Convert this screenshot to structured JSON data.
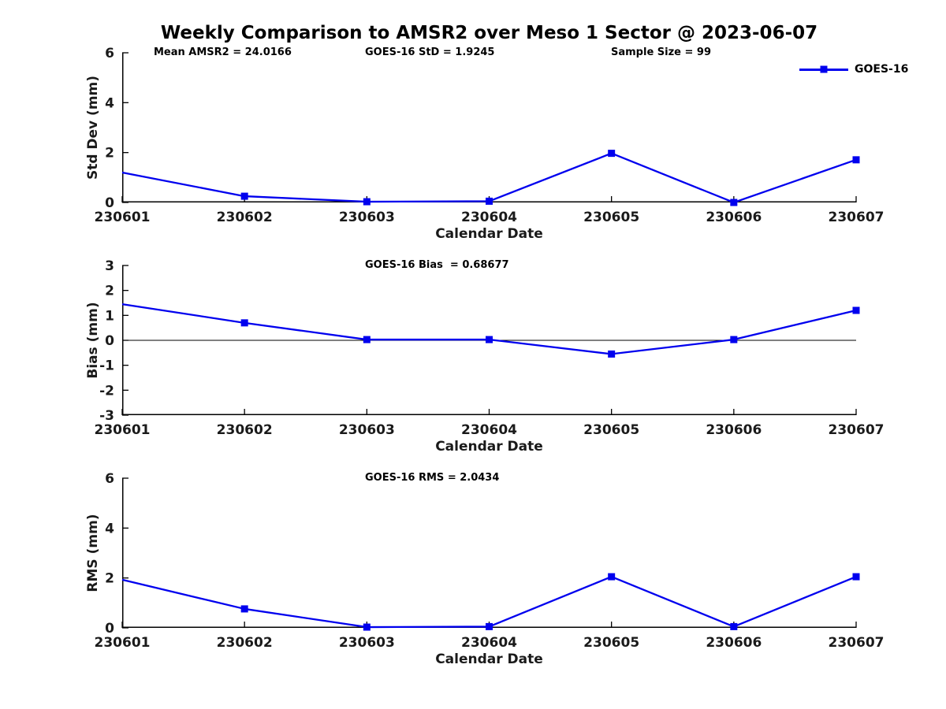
{
  "page": {
    "title": "Weekly Comparison to AMSR2 over Meso 1 Sector @ 2023-06-07",
    "background": "#ffffff"
  },
  "colors": {
    "series": "#0000ee",
    "axis": "#000000",
    "text": "#1a1a1a"
  },
  "legend": {
    "label": "GOES-16",
    "marker": "filled-square",
    "position": "top-right-inside-first-plot"
  },
  "chart_data": [
    {
      "type": "line",
      "ylabel": "Std Dev (mm)",
      "xlabel": "Calendar Date",
      "categories": [
        "230601",
        "230602",
        "230603",
        "230604",
        "230605",
        "230606",
        "230607"
      ],
      "series": [
        {
          "name": "GOES-16",
          "values": [
            1.2,
            0.25,
            0.03,
            0.05,
            1.97,
            0.0,
            1.71
          ]
        }
      ],
      "ylim": [
        0,
        6
      ],
      "yticks": [
        0,
        2,
        4,
        6
      ],
      "grid": false,
      "zero_line": false,
      "annotations": [
        {
          "text": "Mean AMSR2 = 24.0166"
        },
        {
          "text": "GOES-16 StD = 1.9245"
        },
        {
          "text": "Sample Size = 99"
        }
      ]
    },
    {
      "type": "line",
      "ylabel": "Bias (mm)",
      "xlabel": "Calendar Date",
      "categories": [
        "230601",
        "230602",
        "230603",
        "230604",
        "230605",
        "230606",
        "230607"
      ],
      "series": [
        {
          "name": "GOES-16",
          "values": [
            1.45,
            0.7,
            0.03,
            0.03,
            -0.55,
            0.03,
            1.2
          ]
        }
      ],
      "ylim": [
        -3,
        3
      ],
      "yticks": [
        -3,
        -2,
        -1,
        0,
        1,
        2,
        3
      ],
      "grid": false,
      "zero_line": true,
      "annotations": [
        {
          "text": "GOES-16 Bias  = 0.68677"
        }
      ]
    },
    {
      "type": "line",
      "ylabel": "RMS (mm)",
      "xlabel": "Calendar Date",
      "categories": [
        "230601",
        "230602",
        "230603",
        "230604",
        "230605",
        "230606",
        "230607"
      ],
      "series": [
        {
          "name": "GOES-16",
          "values": [
            1.93,
            0.76,
            0.03,
            0.05,
            2.05,
            0.05,
            2.05
          ]
        }
      ],
      "ylim": [
        0,
        6
      ],
      "yticks": [
        0,
        2,
        4,
        6
      ],
      "grid": false,
      "zero_line": false,
      "annotations": [
        {
          "text": "GOES-16 RMS = 2.0434"
        }
      ]
    }
  ]
}
